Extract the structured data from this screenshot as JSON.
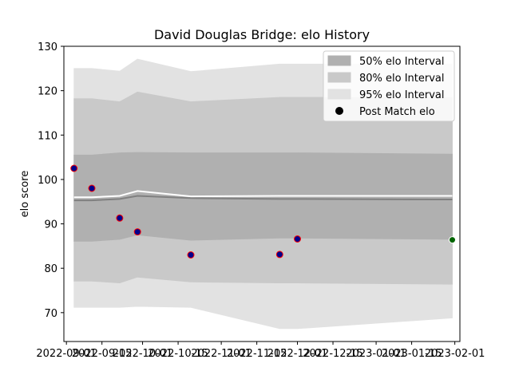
{
  "chart_data": {
    "type": "line",
    "title": "David Douglas Bridge: elo History",
    "xlabel": "",
    "ylabel": "elo score",
    "xlim": [
      "2022-08-31",
      "2023-02-03"
    ],
    "ylim": [
      63.5,
      130
    ],
    "x_ticks": [
      "2022-09-01",
      "2022-09-15",
      "2022-10-01",
      "2022-10-15",
      "2022-11-01",
      "2022-11-15",
      "2022-12-01",
      "2022-12-15",
      "2023-01-01",
      "2023-01-15",
      "2023-02-01"
    ],
    "y_ticks": [
      70,
      80,
      90,
      100,
      110,
      120,
      130
    ],
    "grid": false,
    "legend_position": "top-right",
    "legend": [
      {
        "label": "50% elo Interval",
        "kind": "patch",
        "color": "#b0b0b0"
      },
      {
        "label": "80% elo Interval",
        "kind": "patch",
        "color": "#c9c9c9"
      },
      {
        "label": "95% elo Interval",
        "kind": "patch",
        "color": "#e2e2e2"
      },
      {
        "label": "Post Match elo",
        "kind": "marker",
        "color": "#000000"
      }
    ],
    "band_dates": [
      "2022-09-04",
      "2022-09-11",
      "2022-09-22",
      "2022-09-29",
      "2022-10-20",
      "2022-11-24",
      "2022-12-01",
      "2023-01-31"
    ],
    "bands": {
      "p95": {
        "lower": [
          71.2,
          71.2,
          71.2,
          71.4,
          71.2,
          66.4,
          66.4,
          68.8
        ],
        "upper": [
          125,
          125,
          124.4,
          127.1,
          124.3,
          126,
          126,
          126
        ]
      },
      "p80": {
        "lower": [
          77.1,
          77.1,
          76.7,
          78.0,
          76.9,
          76.7,
          76.7,
          76.4
        ],
        "upper": [
          118.2,
          118.2,
          117.5,
          119.7,
          117.5,
          118.5,
          118.5,
          118.5
        ]
      },
      "p50": {
        "lower": [
          86.1,
          86.1,
          86.5,
          87.5,
          86.3,
          86.8,
          86.8,
          86.5
        ],
        "upper": [
          105.5,
          105.5,
          106.0,
          106.1,
          106.0,
          106.0,
          106.0,
          105.7
        ]
      }
    },
    "lines": [
      {
        "name": "median",
        "color": "#808080",
        "values": [
          95.3,
          95.3,
          95.6,
          96.3,
          95.8,
          95.6,
          95.6,
          95.5
        ]
      },
      {
        "name": "mean",
        "color": "#ffffff",
        "values": [
          96.0,
          96.0,
          96.3,
          97.4,
          96.2,
          96.3,
          96.3,
          96.3
        ]
      }
    ],
    "points": [
      {
        "x": "2022-09-04",
        "y": 102.5,
        "fill": "#00008b",
        "edge": "#ff0000"
      },
      {
        "x": "2022-09-11",
        "y": 98.0,
        "fill": "#00008b",
        "edge": "#ff0000"
      },
      {
        "x": "2022-09-22",
        "y": 91.3,
        "fill": "#00008b",
        "edge": "#ff0000"
      },
      {
        "x": "2022-09-29",
        "y": 88.2,
        "fill": "#00008b",
        "edge": "#ff0000"
      },
      {
        "x": "2022-10-20",
        "y": 83.0,
        "fill": "#00008b",
        "edge": "#ff0000"
      },
      {
        "x": "2022-11-24",
        "y": 83.1,
        "fill": "#00008b",
        "edge": "#ff0000"
      },
      {
        "x": "2022-12-01",
        "y": 86.6,
        "fill": "#00008b",
        "edge": "#ff0000"
      },
      {
        "x": "2023-01-31",
        "y": 86.4,
        "fill": "#006400",
        "edge": "#ffffff"
      }
    ]
  }
}
